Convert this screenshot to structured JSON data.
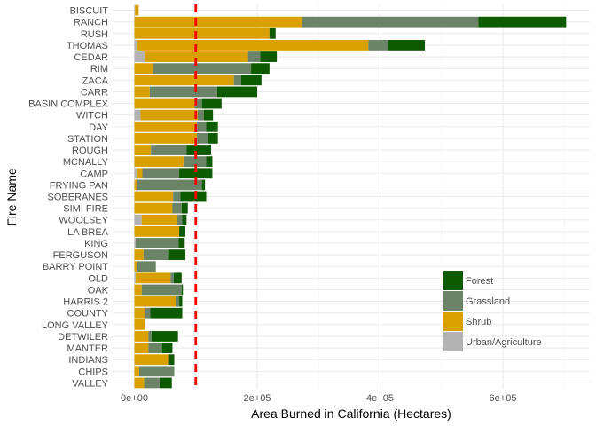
{
  "chart_data": {
    "type": "bar",
    "orientation": "horizontal",
    "stacked": true,
    "xlabel": "Area Burned in California (Hectares)",
    "ylabel": "Fire Name",
    "xlim": [
      0,
      730000
    ],
    "x_ticks": [
      0,
      200000,
      400000,
      600000
    ],
    "x_tick_labels": [
      "0e+00",
      "2e+05",
      "4e+05",
      "6e+05"
    ],
    "reference_line": {
      "x": 100000,
      "color": "#ff0000",
      "style": "dashed"
    },
    "grid": true,
    "legend_position": "bottom-right",
    "categories": [
      "BISCUIT",
      "RANCH",
      "RUSH",
      "THOMAS",
      "CEDAR",
      "RIM",
      "ZACA",
      "CARR",
      "BASIN COMPLEX",
      "WITCH",
      "DAY",
      "STATION",
      "ROUGH",
      "MCNALLY",
      "CAMP",
      "FRYING PAN",
      "SOBERANES",
      "SIMI FIRE",
      "WOOLSEY",
      "LA BREA",
      "KING",
      "FERGUSON",
      "BARRY POINT",
      "OLD",
      "OAK",
      "HARRIS 2",
      "COUNTY",
      "LONG VALLEY",
      "DETWILER",
      "MANTER",
      "INDIANS",
      "CHIPS",
      "VALLEY"
    ],
    "series": [
      {
        "name": "Urban/Agriculture",
        "color": "#b3b3b3",
        "values": [
          1000,
          0,
          0,
          5000,
          17000,
          0,
          0,
          0,
          0,
          10000,
          0,
          0,
          0,
          0,
          5000,
          0,
          0,
          0,
          12000,
          0,
          2000,
          0,
          0,
          2000,
          0,
          0,
          0,
          0,
          0,
          0,
          0,
          0,
          0
        ]
      },
      {
        "name": "Shrub",
        "color": "#d8a000",
        "values": [
          6000,
          273000,
          220000,
          376000,
          168000,
          30000,
          162000,
          25000,
          98000,
          93000,
          102000,
          102000,
          27000,
          80000,
          8000,
          5000,
          63000,
          62000,
          58000,
          73000,
          0,
          15000,
          5000,
          57000,
          12000,
          68000,
          18000,
          17000,
          23000,
          23000,
          55000,
          8000,
          16000
        ]
      },
      {
        "name": "Grassland",
        "color": "#6b8468",
        "values": [
          0,
          287000,
          0,
          32000,
          20000,
          160000,
          12000,
          110000,
          12000,
          10000,
          15000,
          18000,
          58000,
          37000,
          60000,
          105000,
          12000,
          15000,
          8000,
          0,
          70000,
          40000,
          30000,
          5000,
          65000,
          5000,
          8000,
          0,
          5000,
          22000,
          0,
          57000,
          25000
        ]
      },
      {
        "name": "Forest",
        "color": "#0e5a00",
        "values": [
          0,
          143000,
          10000,
          60000,
          27000,
          30000,
          33000,
          65000,
          32000,
          15000,
          19000,
          16000,
          40000,
          10000,
          54000,
          5000,
          42000,
          10000,
          7000,
          10000,
          10000,
          28000,
          0,
          13000,
          2000,
          5000,
          52000,
          0,
          43000,
          17000,
          10000,
          0,
          20000
        ]
      }
    ],
    "legend_order": [
      "Forest",
      "Grassland",
      "Shrub",
      "Urban/Agriculture"
    ]
  }
}
